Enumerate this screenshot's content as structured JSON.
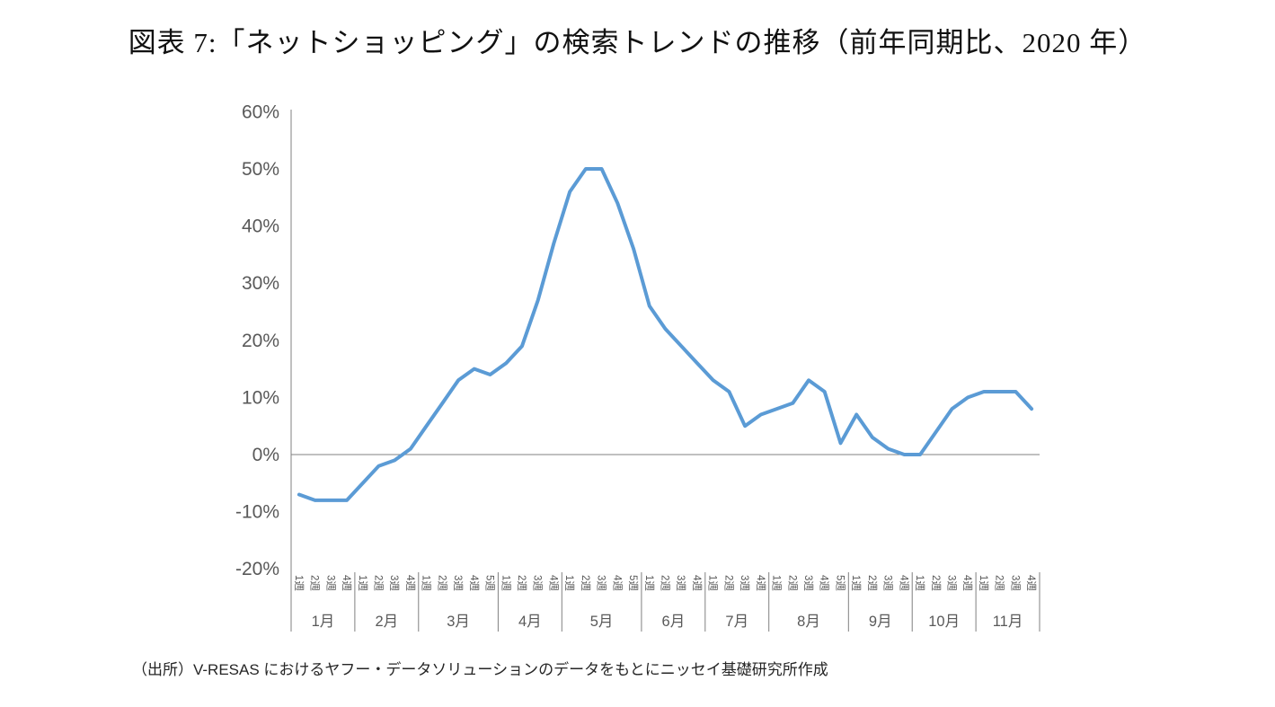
{
  "title": "図表 7:「ネットショッピング」の検索トレンドの推移（前年同期比、2020 年）",
  "source_note": "（出所）V-RESAS におけるヤフー・データソリューションのデータをもとにニッセイ基礎研究所作成",
  "colors": {
    "line": "#5B9BD5",
    "axis": "#808080",
    "tick_text": "#595959",
    "title_text": "#111111"
  },
  "chart_data": {
    "type": "line",
    "title": "「ネットショッピング」の検索トレンドの推移（前年同期比、2020年）",
    "ylabel": "",
    "xlabel": "",
    "ylim": [
      -20,
      60
    ],
    "y_ticks": [
      "60%",
      "50%",
      "40%",
      "30%",
      "20%",
      "10%",
      "0%",
      "-10%",
      "-20%"
    ],
    "grid": "zero-baseline-only",
    "legend": "none",
    "months": [
      {
        "label": "1月",
        "weeks": [
          "1週",
          "2週",
          "3週",
          "4週"
        ],
        "values": [
          -7,
          -8,
          -8,
          -8
        ]
      },
      {
        "label": "2月",
        "weeks": [
          "1週",
          "2週",
          "3週",
          "4週"
        ],
        "values": [
          -5,
          -2,
          -1,
          1
        ]
      },
      {
        "label": "3月",
        "weeks": [
          "1週",
          "2週",
          "3週",
          "4週",
          "5週"
        ],
        "values": [
          5,
          9,
          13,
          15,
          14
        ]
      },
      {
        "label": "4月",
        "weeks": [
          "1週",
          "2週",
          "3週",
          "4週"
        ],
        "values": [
          16,
          19,
          27,
          37
        ]
      },
      {
        "label": "5月",
        "weeks": [
          "1週",
          "2週",
          "3週",
          "4週",
          "5週"
        ],
        "values": [
          46,
          50,
          50,
          44,
          36
        ]
      },
      {
        "label": "6月",
        "weeks": [
          "1週",
          "2週",
          "3週",
          "4週"
        ],
        "values": [
          26,
          22,
          19,
          16
        ]
      },
      {
        "label": "7月",
        "weeks": [
          "1週",
          "2週",
          "3週",
          "4週"
        ],
        "values": [
          13,
          11,
          5,
          7
        ]
      },
      {
        "label": "8月",
        "weeks": [
          "1週",
          "2週",
          "3週",
          "4週",
          "5週"
        ],
        "values": [
          8,
          9,
          13,
          11,
          2
        ]
      },
      {
        "label": "9月",
        "weeks": [
          "1週",
          "2週",
          "3週",
          "4週"
        ],
        "values": [
          7,
          3,
          1,
          0
        ]
      },
      {
        "label": "10月",
        "weeks": [
          "1週",
          "2週",
          "3週",
          "4週"
        ],
        "values": [
          0,
          4,
          8,
          10
        ]
      },
      {
        "label": "11月",
        "weeks": [
          "1週",
          "2週",
          "3週",
          "4週"
        ],
        "values": [
          11,
          11,
          11,
          8
        ]
      }
    ]
  }
}
